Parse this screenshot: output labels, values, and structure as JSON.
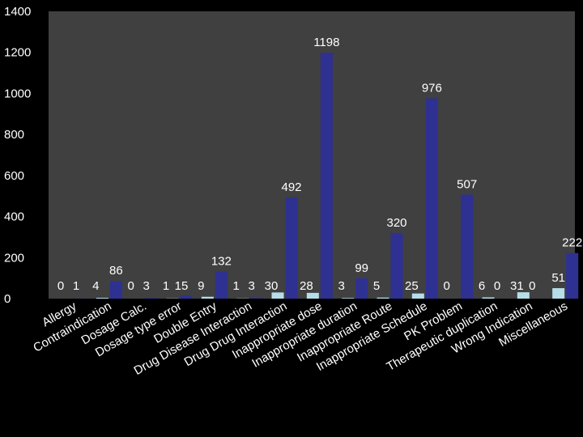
{
  "chart_data": {
    "type": "bar",
    "categories": [
      "Allergy",
      "Contraindication",
      "Dosage Calc.",
      "Dosage type error",
      "Double Entry",
      "Drug Disease Interaction",
      "Drug Drug Interaction",
      "Inappropriate dose",
      "Inappropriate duration",
      "Inappropriate Route",
      "Inappropriate Schedule",
      "PK Problem",
      "Therapeutic duplication",
      "Wrong Indication",
      "Miscellaneous"
    ],
    "series": [
      {
        "values": [
          0,
          4,
          0,
          1,
          9,
          1,
          30,
          28,
          3,
          5,
          25,
          0,
          6,
          31,
          51
        ],
        "color": "#b6dde8"
      },
      {
        "values": [
          1,
          86,
          3,
          15,
          132,
          3,
          492,
          1198,
          99,
          320,
          976,
          507,
          0,
          0,
          222
        ],
        "color": "#2e3192"
      }
    ],
    "ylim": [
      0,
      1400
    ],
    "yticks": [
      0,
      200,
      400,
      600,
      800,
      1000,
      1200,
      1400
    ],
    "grid": false,
    "plot_background": "#404040",
    "page_background": "#000000"
  }
}
